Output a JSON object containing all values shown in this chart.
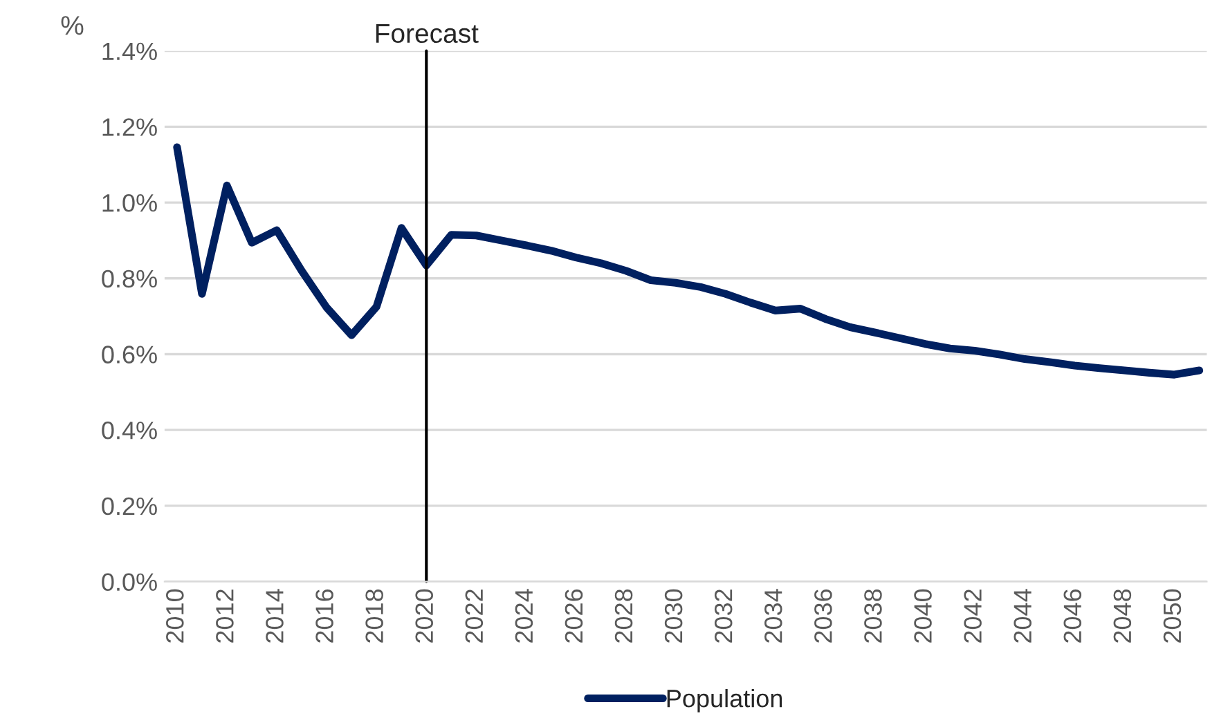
{
  "chart_data": {
    "type": "line",
    "categories": [
      "2010",
      null,
      "2012",
      null,
      "2014",
      null,
      "2016",
      null,
      "2018",
      null,
      "2020",
      null,
      "2022",
      null,
      "2024",
      null,
      "2026",
      null,
      "2028",
      null,
      "2030",
      null,
      "2032",
      null,
      "2034",
      null,
      "2036",
      null,
      "2038",
      null,
      "2040",
      null,
      "2042",
      null,
      "2044",
      null,
      "2046",
      null,
      "2048",
      null,
      "2050",
      null
    ],
    "series": [
      {
        "name": "Population",
        "color": "#002060",
        "values": [
          1.146,
          0.759,
          1.045,
          0.894,
          0.927,
          0.82,
          0.723,
          0.65,
          0.725,
          0.933,
          0.834,
          0.915,
          0.913,
          0.9,
          0.887,
          0.873,
          0.855,
          0.84,
          0.82,
          0.795,
          0.788,
          0.777,
          0.759,
          0.736,
          0.715,
          0.72,
          0.693,
          0.671,
          0.657,
          0.642,
          0.627,
          0.615,
          0.609,
          0.599,
          0.587,
          0.579,
          0.57,
          0.563,
          0.557,
          0.551,
          0.546,
          0.557
        ]
      }
    ],
    "ylabel": "%",
    "ylim": [
      0,
      1.4
    ],
    "yticks": [
      {
        "value": 0,
        "label": "0.0%"
      },
      {
        "value": 0.2,
        "label": "0.2%"
      },
      {
        "value": 0.4,
        "label": "0.4%"
      },
      {
        "value": 0.6,
        "label": "0.6%"
      },
      {
        "value": 0.8,
        "label": "0.8%"
      },
      {
        "value": 1.0,
        "label": "1.0%"
      },
      {
        "value": 1.2,
        "label": "1.2%"
      },
      {
        "value": 1.4,
        "label": "1.4%"
      }
    ],
    "ref_lines": [
      {
        "axis": "x",
        "value": "2020",
        "label": "Forecast",
        "color": "#000000"
      }
    ],
    "grid": "y",
    "legend": "bottom",
    "marker": "none",
    "line_style": "solid"
  }
}
